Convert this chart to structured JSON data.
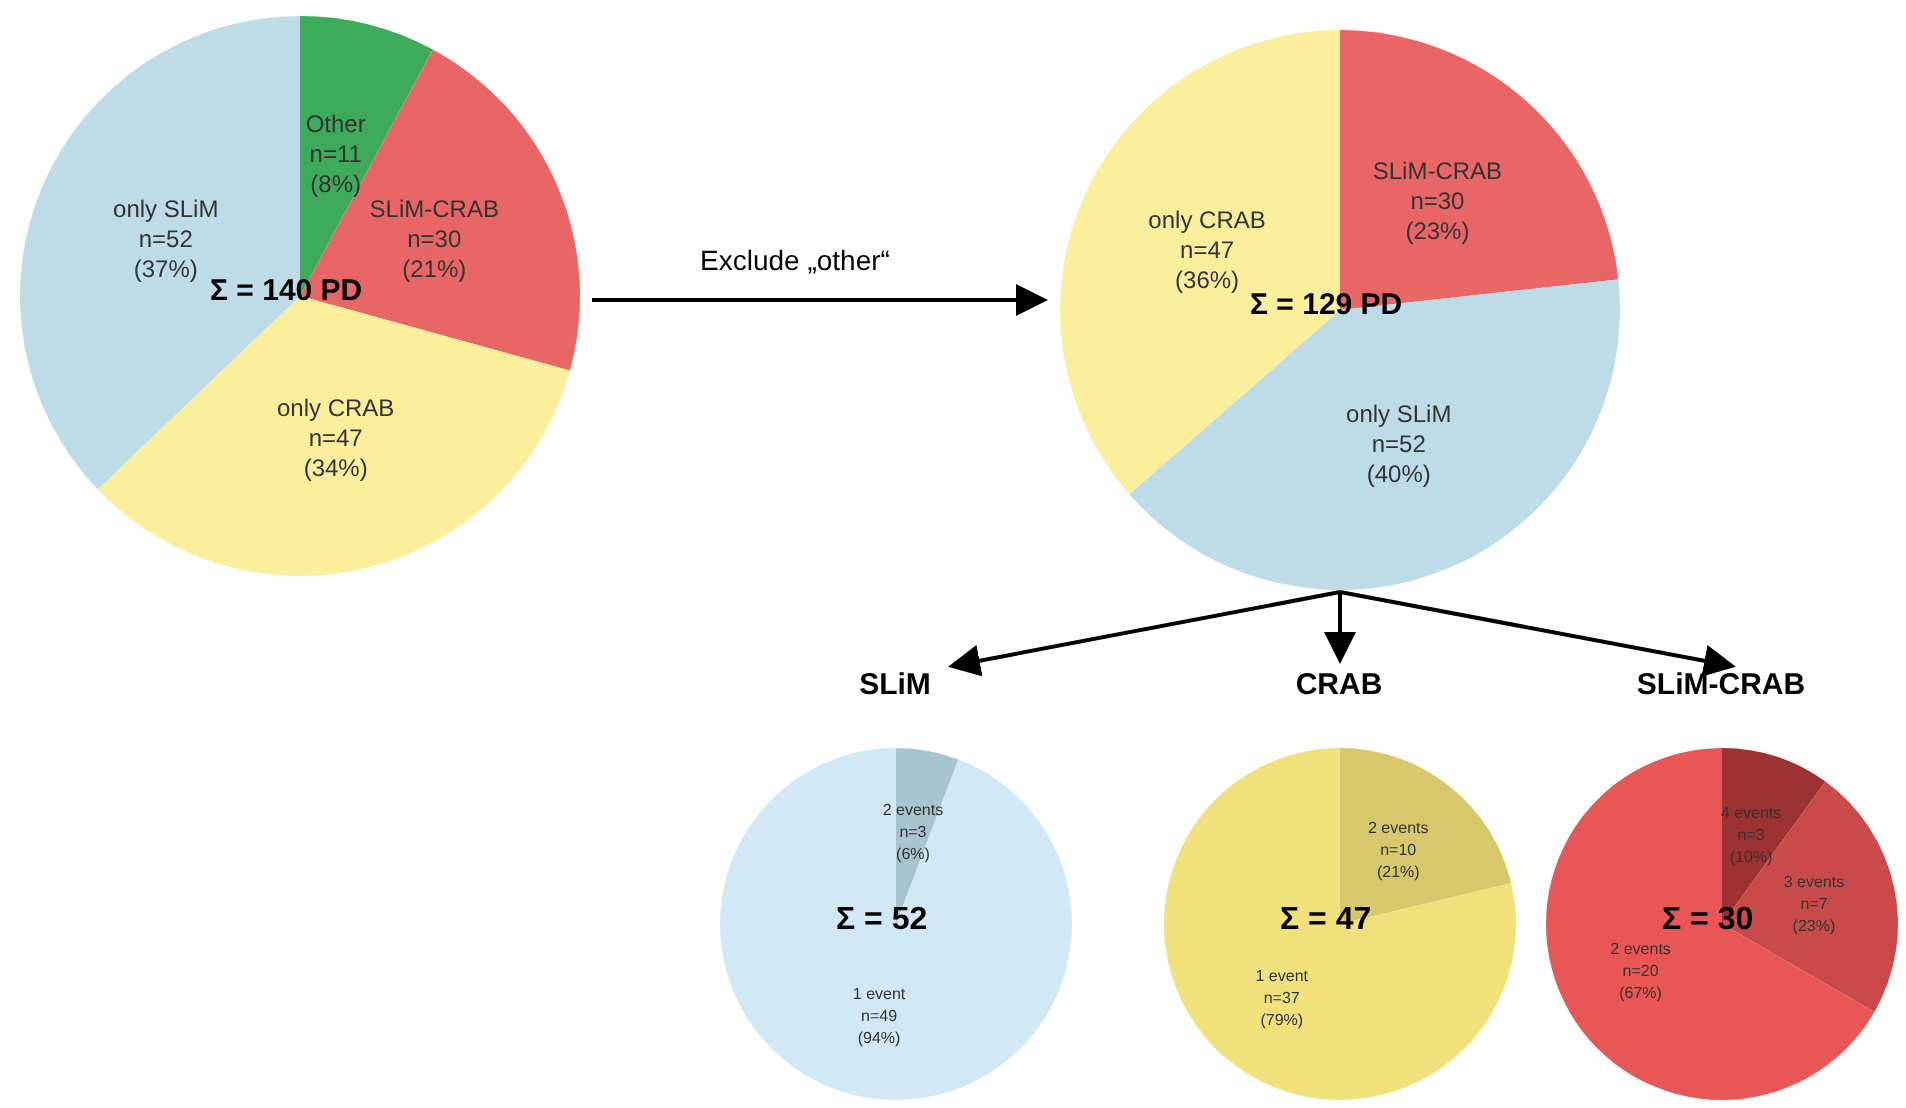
{
  "chart_data": [
    {
      "type": "pie",
      "categories": [
        "Other",
        "SLiM-CRAB",
        "only CRAB",
        "only SLiM"
      ],
      "values": [
        11,
        30,
        47,
        52
      ],
      "colors": [
        "#3dab5b",
        "#e96666",
        "#fcef9b",
        "#bddce8"
      ],
      "value_labels": [
        "n=11\n(8%)",
        "n=30\n(21%)",
        "n=47\n(34%)",
        "n=52\n(37%)"
      ],
      "annotations": [
        "Σ = 140 PD"
      ]
    },
    {
      "type": "pie",
      "categories": [
        "SLiM-CRAB",
        "only SLiM",
        "only CRAB"
      ],
      "values": [
        30,
        52,
        47
      ],
      "colors": [
        "#e96666",
        "#bddce8",
        "#fcef9b"
      ],
      "value_labels": [
        "n=30\n(23%)",
        "n=52\n(40%)",
        "n=47\n(36%)"
      ],
      "annotations": [
        "Σ = 129 PD",
        "Exclude „other“"
      ]
    },
    {
      "type": "pie",
      "title": "SLiM",
      "categories": [
        "2 events",
        "1 event"
      ],
      "values": [
        3,
        49
      ],
      "colors": [
        "#a8c4cf",
        "#d1e9f7"
      ],
      "value_labels": [
        "n=3\n(6%)",
        "n=49\n(94%)"
      ],
      "annotations": [
        "Σ = 52"
      ]
    },
    {
      "type": "pie",
      "title": "CRAB",
      "categories": [
        "2 events",
        "1 event"
      ],
      "values": [
        10,
        37
      ],
      "colors": [
        "#d7c86b",
        "#f0e17b"
      ],
      "value_labels": [
        "n=10\n(21%)",
        "n=37\n(79%)"
      ],
      "annotations": [
        "Σ = 47"
      ]
    },
    {
      "type": "pie",
      "title": "SLiM-CRAB",
      "categories": [
        "4 events",
        "3 events",
        "2 events"
      ],
      "values": [
        3,
        7,
        20
      ],
      "colors": [
        "#9c3232",
        "#ca4a4a",
        "#e85656"
      ],
      "value_labels": [
        "n=3\n(10%)",
        "n=7\n(23%)",
        "n=20\n(67%)"
      ],
      "annotations": [
        "Σ = 30"
      ]
    }
  ]
}
